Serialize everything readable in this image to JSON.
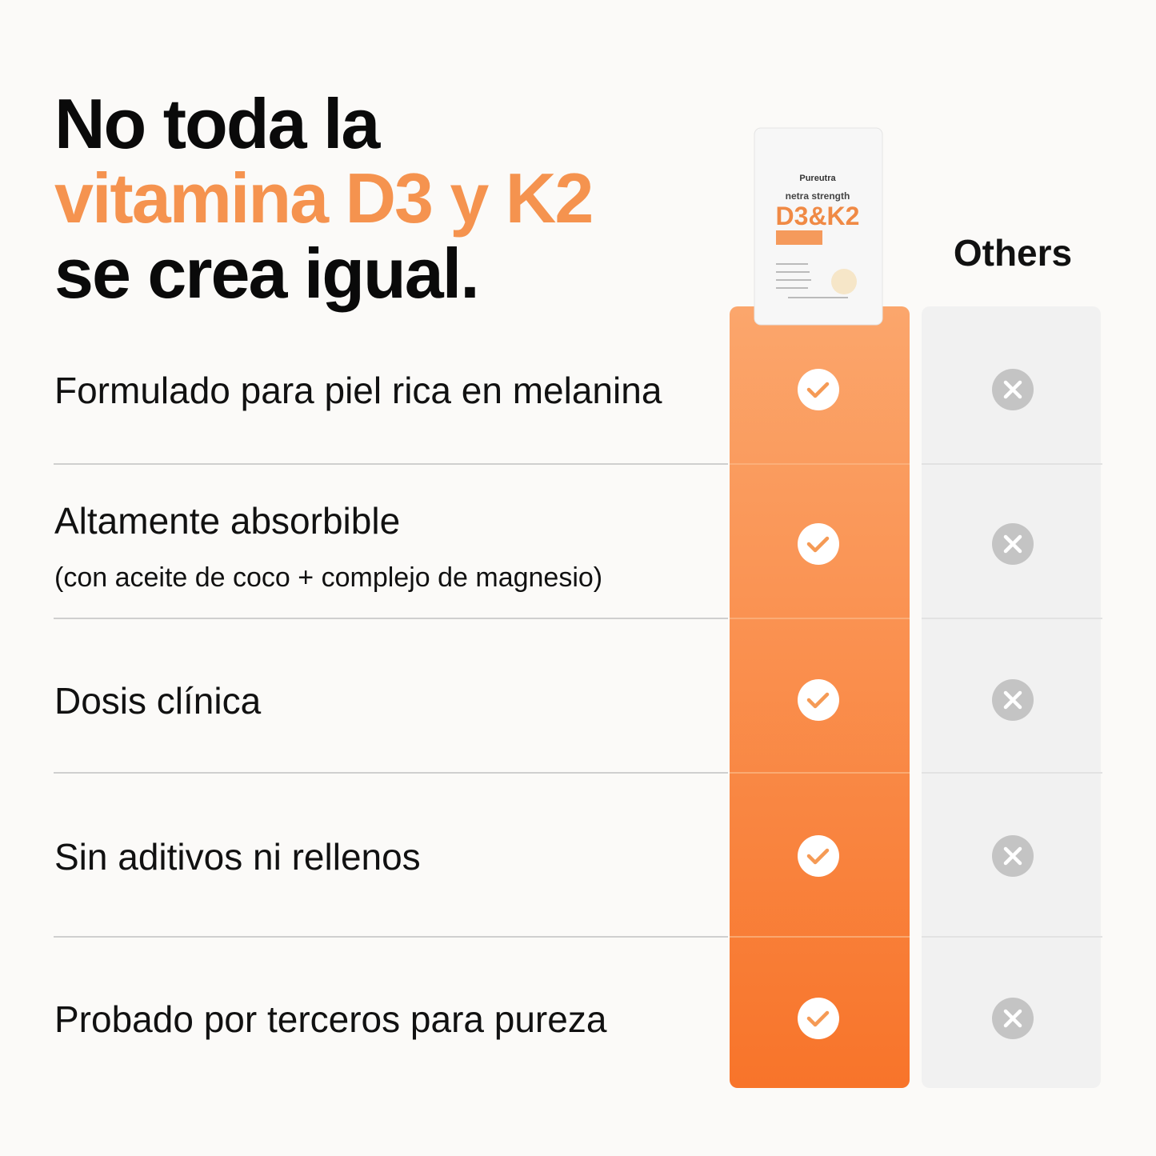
{
  "header": {
    "title_lines": [
      "No toda la",
      "vitamina D3 y K2",
      "se crea igual."
    ]
  },
  "product": {
    "brand": "Pureutra",
    "strength": "netra strength",
    "name": "D3&K2"
  },
  "columns": {
    "others": "Others"
  },
  "rows": [
    {
      "label": "Formulado para piel rica en melanina"
    },
    {
      "label": "Altamente absorbible",
      "sublabel": "(con aceite de coco + complejo de magnesio)"
    },
    {
      "label": "Dosis clínica"
    },
    {
      "label": "Sin aditivos ni rellenos"
    },
    {
      "label": "Probado por terceros para pureza"
    }
  ]
}
